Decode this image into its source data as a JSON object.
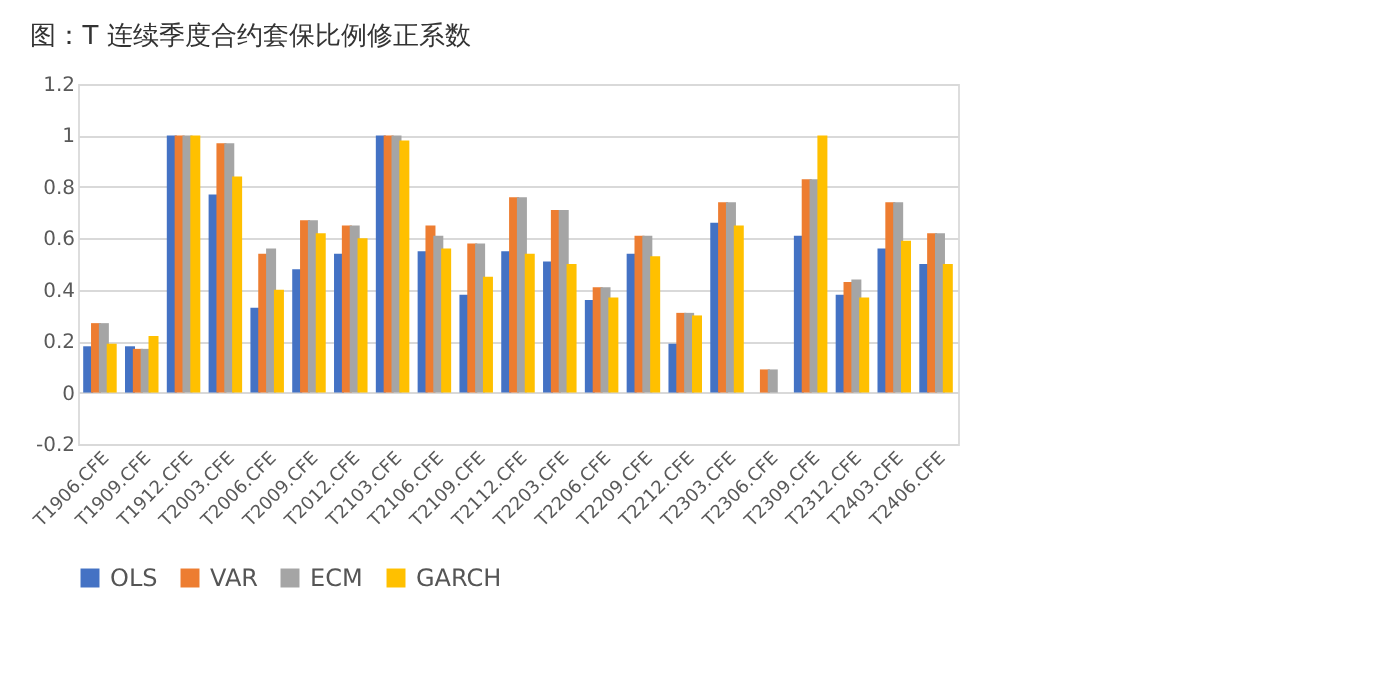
{
  "chart_data": {
    "type": "bar",
    "title": "图：T 连续季度合约套保比例修正系数",
    "categories": [
      "T1906.CFE",
      "T1909.CFE",
      "T1912.CFE",
      "T2003.CFE",
      "T2006.CFE",
      "T2009.CFE",
      "T2012.CFE",
      "T2103.CFE",
      "T2106.CFE",
      "T2109.CFE",
      "T2112.CFE",
      "T2203.CFE",
      "T2206.CFE",
      "T2209.CFE",
      "T2212.CFE",
      "T2303.CFE",
      "T2306.CFE",
      "T2309.CFE",
      "T2312.CFE",
      "T2403.CFE",
      "T2406.CFE"
    ],
    "series": [
      {
        "name": "OLS",
        "color": "#4472c4",
        "values": [
          0.18,
          0.18,
          1,
          0.77,
          0.33,
          0.48,
          0.54,
          1,
          0.55,
          0.38,
          0.55,
          0.51,
          0.36,
          0.54,
          0.19,
          0.66,
          null,
          0.61,
          0.38,
          0.56,
          0.5
        ]
      },
      {
        "name": "VAR",
        "color": "#ed7d31",
        "values": [
          0.27,
          0.17,
          1,
          0.97,
          0.54,
          0.67,
          0.65,
          1,
          0.65,
          0.58,
          0.76,
          0.71,
          0.41,
          0.61,
          0.31,
          0.74,
          0.09,
          0.83,
          0.43,
          0.74,
          0.62
        ]
      },
      {
        "name": "ECM",
        "color": "#a5a5a5",
        "values": [
          0.27,
          0.17,
          1,
          0.97,
          0.56,
          0.67,
          0.65,
          1,
          0.61,
          0.58,
          0.76,
          0.71,
          0.41,
          0.61,
          0.31,
          0.74,
          0.09,
          0.83,
          0.44,
          0.74,
          0.62
        ]
      },
      {
        "name": "GARCH",
        "color": "#ffc000",
        "values": [
          0.19,
          0.22,
          1,
          0.84,
          0.4,
          0.62,
          0.6,
          0.98,
          0.56,
          0.45,
          0.54,
          0.5,
          0.37,
          0.53,
          0.3,
          0.65,
          null,
          1,
          0.37,
          0.59,
          0.5
        ]
      }
    ],
    "ylim": [
      -0.2,
      1.2
    ],
    "yticks": [
      -0.2,
      0,
      0.2,
      0.4,
      0.6,
      0.8,
      1,
      1.2
    ],
    "grid": "y",
    "legend": "bottom"
  }
}
